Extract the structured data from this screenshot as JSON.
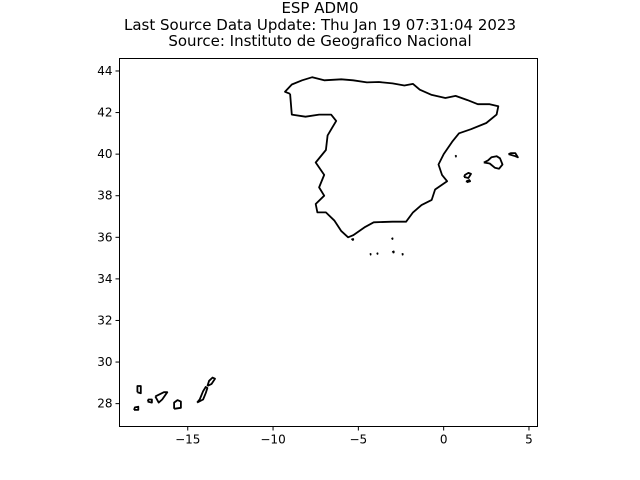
{
  "title_lines": [
    "ESP ADM0",
    "Last Source Data Update: Thu Jan 19 07:31:04 2023",
    "Source: Instituto de Geografico Nacional"
  ],
  "chart_data": {
    "type": "map",
    "region": "ESP ADM0",
    "xlim": [
      -19.0,
      5.5
    ],
    "ylim": [
      26.9,
      44.6
    ],
    "x_ticks": [
      -15,
      -10,
      -5,
      0,
      5
    ],
    "y_ticks": [
      28,
      30,
      32,
      34,
      36,
      38,
      40,
      42,
      44
    ],
    "x_tick_labels": [
      "−15",
      "−10",
      "−5",
      "0",
      "5"
    ],
    "y_tick_labels": [
      "28",
      "30",
      "32",
      "34",
      "36",
      "38",
      "40",
      "42",
      "44"
    ],
    "grid": false,
    "line_color": "#000000",
    "shapes": [
      {
        "name": "Mainland",
        "lonlat": [
          [
            -9.0,
            42.9
          ],
          [
            -9.3,
            43.0
          ],
          [
            -8.9,
            43.35
          ],
          [
            -8.3,
            43.55
          ],
          [
            -7.7,
            43.7
          ],
          [
            -7.0,
            43.55
          ],
          [
            -6.0,
            43.6
          ],
          [
            -5.3,
            43.55
          ],
          [
            -4.5,
            43.45
          ],
          [
            -3.8,
            43.47
          ],
          [
            -3.0,
            43.4
          ],
          [
            -2.3,
            43.3
          ],
          [
            -1.8,
            43.38
          ],
          [
            -1.4,
            43.1
          ],
          [
            -0.7,
            42.85
          ],
          [
            0.1,
            42.7
          ],
          [
            0.7,
            42.8
          ],
          [
            1.4,
            42.6
          ],
          [
            2.0,
            42.4
          ],
          [
            2.7,
            42.4
          ],
          [
            3.2,
            42.3
          ],
          [
            3.1,
            41.9
          ],
          [
            2.5,
            41.5
          ],
          [
            1.6,
            41.2
          ],
          [
            0.9,
            41.0
          ],
          [
            0.5,
            40.6
          ],
          [
            0.0,
            40.0
          ],
          [
            -0.3,
            39.5
          ],
          [
            -0.1,
            39.0
          ],
          [
            0.2,
            38.7
          ],
          [
            -0.5,
            38.3
          ],
          [
            -0.7,
            37.8
          ],
          [
            -1.3,
            37.55
          ],
          [
            -1.8,
            37.2
          ],
          [
            -2.2,
            36.75
          ],
          [
            -3.0,
            36.75
          ],
          [
            -4.1,
            36.72
          ],
          [
            -4.6,
            36.5
          ],
          [
            -5.3,
            36.1
          ],
          [
            -5.6,
            36.0
          ],
          [
            -6.0,
            36.3
          ],
          [
            -6.4,
            36.8
          ],
          [
            -6.9,
            37.2
          ],
          [
            -7.4,
            37.2
          ],
          [
            -7.5,
            37.6
          ],
          [
            -7.0,
            38.0
          ],
          [
            -7.3,
            38.4
          ],
          [
            -7.0,
            39.0
          ],
          [
            -7.5,
            39.6
          ],
          [
            -6.9,
            40.2
          ],
          [
            -6.8,
            40.9
          ],
          [
            -6.3,
            41.6
          ],
          [
            -6.6,
            41.9
          ],
          [
            -7.3,
            41.9
          ],
          [
            -8.1,
            41.8
          ],
          [
            -8.9,
            41.9
          ],
          [
            -9.0,
            42.9
          ]
        ]
      },
      {
        "name": "Mallorca",
        "lonlat": [
          [
            2.35,
            39.6
          ],
          [
            2.7,
            39.55
          ],
          [
            3.0,
            39.35
          ],
          [
            3.25,
            39.3
          ],
          [
            3.45,
            39.5
          ],
          [
            3.3,
            39.8
          ],
          [
            3.1,
            39.9
          ],
          [
            2.8,
            39.85
          ],
          [
            2.6,
            39.7
          ],
          [
            2.35,
            39.6
          ]
        ]
      },
      {
        "name": "Menorca",
        "lonlat": [
          [
            3.8,
            40.0
          ],
          [
            4.2,
            39.9
          ],
          [
            4.35,
            39.85
          ],
          [
            4.2,
            40.05
          ],
          [
            3.95,
            40.05
          ],
          [
            3.8,
            40.0
          ]
        ]
      },
      {
        "name": "Ibiza",
        "lonlat": [
          [
            1.2,
            38.9
          ],
          [
            1.45,
            38.85
          ],
          [
            1.6,
            39.05
          ],
          [
            1.45,
            39.1
          ],
          [
            1.25,
            39.0
          ],
          [
            1.2,
            38.9
          ]
        ]
      },
      {
        "name": "Formentera",
        "lonlat": [
          [
            1.35,
            38.65
          ],
          [
            1.55,
            38.7
          ],
          [
            1.5,
            38.75
          ],
          [
            1.35,
            38.7
          ],
          [
            1.35,
            38.65
          ]
        ]
      },
      {
        "name": "Lanzarote",
        "lonlat": [
          [
            -13.85,
            28.85
          ],
          [
            -13.6,
            28.95
          ],
          [
            -13.4,
            29.2
          ],
          [
            -13.55,
            29.25
          ],
          [
            -13.75,
            29.1
          ],
          [
            -13.85,
            28.85
          ]
        ]
      },
      {
        "name": "Fuerteventura",
        "lonlat": [
          [
            -14.45,
            28.05
          ],
          [
            -14.1,
            28.2
          ],
          [
            -13.95,
            28.5
          ],
          [
            -13.85,
            28.75
          ],
          [
            -13.95,
            28.8
          ],
          [
            -14.1,
            28.6
          ],
          [
            -14.3,
            28.2
          ],
          [
            -14.45,
            28.05
          ]
        ]
      },
      {
        "name": "Gran Canaria",
        "lonlat": [
          [
            -15.8,
            27.75
          ],
          [
            -15.4,
            27.8
          ],
          [
            -15.4,
            28.1
          ],
          [
            -15.6,
            28.17
          ],
          [
            -15.8,
            28.05
          ],
          [
            -15.8,
            27.75
          ]
        ]
      },
      {
        "name": "Tenerife",
        "lonlat": [
          [
            -16.9,
            28.35
          ],
          [
            -16.7,
            28.05
          ],
          [
            -16.5,
            28.2
          ],
          [
            -16.2,
            28.55
          ],
          [
            -16.4,
            28.55
          ],
          [
            -16.9,
            28.35
          ]
        ]
      },
      {
        "name": "La Gomera",
        "lonlat": [
          [
            -17.35,
            28.1
          ],
          [
            -17.1,
            28.05
          ],
          [
            -17.1,
            28.2
          ],
          [
            -17.3,
            28.2
          ],
          [
            -17.35,
            28.1
          ]
        ]
      },
      {
        "name": "La Palma",
        "lonlat": [
          [
            -17.95,
            28.55
          ],
          [
            -17.75,
            28.5
          ],
          [
            -17.75,
            28.85
          ],
          [
            -17.95,
            28.85
          ],
          [
            -17.95,
            28.55
          ]
        ]
      },
      {
        "name": "El Hierro",
        "lonlat": [
          [
            -18.15,
            27.7
          ],
          [
            -17.9,
            27.7
          ],
          [
            -17.9,
            27.85
          ],
          [
            -18.1,
            27.82
          ],
          [
            -18.15,
            27.7
          ]
        ]
      },
      {
        "name": "Ceuta",
        "lonlat": [
          [
            -5.38,
            35.88
          ],
          [
            -5.3,
            35.88
          ],
          [
            -5.3,
            35.92
          ],
          [
            -5.38,
            35.9
          ],
          [
            -5.38,
            35.88
          ]
        ]
      },
      {
        "name": "Melilla",
        "lonlat": [
          [
            -2.98,
            35.27
          ],
          [
            -2.93,
            35.27
          ],
          [
            -2.93,
            35.32
          ],
          [
            -2.98,
            35.3
          ],
          [
            -2.98,
            35.27
          ]
        ]
      },
      {
        "name": "Alboran",
        "lonlat": [
          [
            -3.05,
            35.92
          ],
          [
            -3.0,
            35.92
          ],
          [
            -3.0,
            35.95
          ],
          [
            -3.05,
            35.92
          ]
        ]
      },
      {
        "name": "Chafarinas",
        "lonlat": [
          [
            -2.45,
            35.17
          ],
          [
            -2.4,
            35.17
          ],
          [
            -2.4,
            35.2
          ],
          [
            -2.45,
            35.17
          ]
        ]
      },
      {
        "name": "Penon de Velez",
        "lonlat": [
          [
            -4.32,
            35.17
          ],
          [
            -4.28,
            35.17
          ],
          [
            -4.28,
            35.2
          ],
          [
            -4.32,
            35.17
          ]
        ]
      },
      {
        "name": "Alhucemas",
        "lonlat": [
          [
            -3.92,
            35.2
          ],
          [
            -3.88,
            35.2
          ],
          [
            -3.88,
            35.23
          ],
          [
            -3.92,
            35.2
          ]
        ]
      },
      {
        "name": "Columbretes",
        "lonlat": [
          [
            0.68,
            39.88
          ],
          [
            0.72,
            39.88
          ],
          [
            0.72,
            39.92
          ],
          [
            0.68,
            39.88
          ]
        ]
      }
    ]
  }
}
